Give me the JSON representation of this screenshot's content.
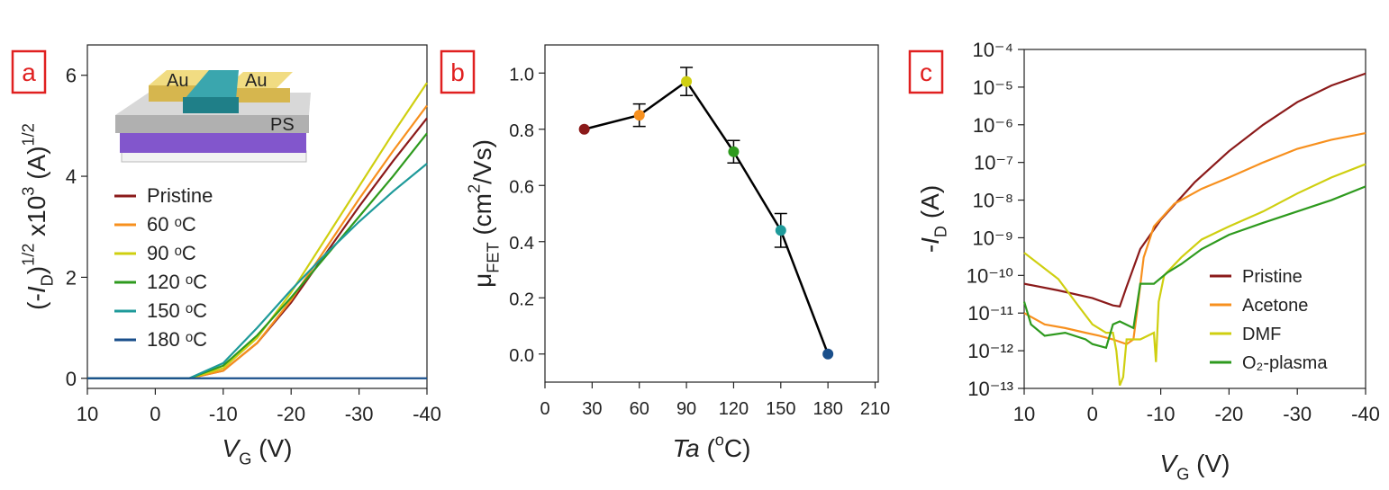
{
  "chart_data": [
    {
      "type": "line",
      "panel_label": "a",
      "x_label": [
        "V",
        "G",
        " (V)"
      ],
      "y_label": [
        "(-",
        "I",
        "D",
        ")",
        "1/2",
        " x10",
        "3",
        " (A)",
        "1/2"
      ],
      "inset_labels": [
        "Au",
        "Au",
        "PS"
      ],
      "x": [
        10,
        0,
        -5,
        -10,
        -15,
        -20,
        -25,
        -30,
        -35,
        -40
      ],
      "xlim": [
        10,
        -40
      ],
      "xticks": [
        10,
        0,
        -10,
        -20,
        -30,
        -40
      ],
      "ylim": [
        -0.2,
        6.6
      ],
      "yticks": [
        0,
        2,
        4,
        6
      ],
      "legend": "upper left",
      "series": [
        {
          "name": "Pristine",
          "color": "#8b1a1a",
          "values": [
            0,
            0,
            0,
            0.15,
            0.7,
            1.5,
            2.45,
            3.4,
            4.3,
            5.15
          ]
        },
        {
          "name": "60 ᵒC",
          "color": "#f7901e",
          "values": [
            0,
            0,
            0,
            0.15,
            0.7,
            1.55,
            2.55,
            3.55,
            4.5,
            5.4
          ]
        },
        {
          "name": "90 ᵒC",
          "color": "#cfcf10",
          "values": [
            0,
            0,
            0,
            0.2,
            0.8,
            1.7,
            2.75,
            3.8,
            4.85,
            5.85
          ]
        },
        {
          "name": "120 ᵒC",
          "color": "#2e9a1e",
          "values": [
            0,
            0,
            0,
            0.25,
            0.85,
            1.6,
            2.4,
            3.2,
            4.0,
            4.85
          ]
        },
        {
          "name": "150 ᵒC",
          "color": "#1e9a9a",
          "values": [
            0,
            0,
            0,
            0.3,
            1.0,
            1.75,
            2.45,
            3.1,
            3.7,
            4.25
          ]
        },
        {
          "name": "180 ᵒC",
          "color": "#1a4f8b",
          "values": [
            0,
            0,
            0,
            0,
            0,
            0,
            0,
            0,
            0,
            0
          ]
        }
      ]
    },
    {
      "type": "line",
      "panel_label": "b",
      "x_label": [
        "T",
        "a",
        " (",
        "o",
        "C)"
      ],
      "y_label": [
        "μ",
        "FET",
        " (cm",
        "2",
        "/Vs)"
      ],
      "x": [
        25,
        60,
        90,
        120,
        150,
        180
      ],
      "xlim": [
        0,
        212
      ],
      "xticks": [
        0,
        30,
        60,
        90,
        120,
        150,
        180,
        210
      ],
      "ylim": [
        -0.1,
        1.1
      ],
      "yticks": [
        {
          "value": 0,
          "label": "0.0"
        },
        0.2,
        0.4,
        0.6,
        0.8,
        {
          "value": 1,
          "label": "1.0"
        }
      ],
      "series": [
        {
          "color": "#000000",
          "values": [
            0.8,
            0.85,
            0.97,
            0.72,
            0.44,
            0.0
          ],
          "errors": [
            0,
            0.04,
            0.05,
            0.04,
            0.06,
            0
          ],
          "point_colors": [
            "#8b1a1a",
            "#f7901e",
            "#cfcf10",
            "#2e9a1e",
            "#1e9a9a",
            "#1a4f8b"
          ]
        }
      ]
    },
    {
      "type": "line",
      "panel_label": "c",
      "log_y": true,
      "x_label": [
        "V",
        "G",
        " (V)"
      ],
      "y_label": [
        "-",
        "I",
        "D",
        " (A)"
      ],
      "xlim": [
        10,
        -40
      ],
      "xticks": [
        10,
        0,
        -10,
        -20,
        -30,
        -40
      ],
      "ylim": [
        1e-13,
        0.0001
      ],
      "yticks": [
        {
          "value": 1e-13,
          "label": "10⁻¹³"
        },
        {
          "value": 1e-12,
          "label": "10⁻¹²"
        },
        {
          "value": 1e-11,
          "label": "10⁻¹¹"
        },
        {
          "value": 1e-10,
          "label": "10⁻¹⁰"
        },
        {
          "value": 1e-09,
          "label": "10⁻⁹"
        },
        {
          "value": 1e-08,
          "label": "10⁻⁸"
        },
        {
          "value": 1e-07,
          "label": "10⁻⁷"
        },
        {
          "value": 1e-06,
          "label": "10⁻⁶"
        },
        {
          "value": 1e-05,
          "label": "10⁻⁵"
        },
        {
          "value": 0.0001,
          "label": "10⁻⁴"
        }
      ],
      "legend": "lower right",
      "series": [
        {
          "name": "Pristine",
          "color": "#8b1a1a",
          "x": [
            10,
            5,
            0,
            -3,
            -4,
            -5,
            -7,
            -10,
            -15,
            -20,
            -25,
            -30,
            -35,
            -40
          ],
          "values": [
            6e-11,
            4e-11,
            2.5e-11,
            1.6e-11,
            1.5e-11,
            5e-11,
            5e-10,
            3e-09,
            3e-08,
            2e-07,
            1e-06,
            4e-06,
            1.1e-05,
            2.3e-05
          ]
        },
        {
          "name": "Acetone",
          "color": "#f7901e",
          "x": [
            10,
            7,
            4,
            1,
            -1,
            -3,
            -5,
            -6,
            -6.5,
            -7.5,
            -9,
            -12,
            -16,
            -20,
            -25,
            -30,
            -35,
            -40
          ],
          "values": [
            1e-11,
            5e-12,
            4e-12,
            3e-12,
            2.5e-12,
            2e-12,
            1.5e-12,
            2e-12,
            1e-11,
            3e-10,
            2e-09,
            8e-09,
            2e-08,
            4e-08,
            1e-07,
            2.3e-07,
            4e-07,
            6e-07
          ]
        },
        {
          "name": "DMF",
          "color": "#cfcf10",
          "x": [
            10,
            5,
            2,
            0,
            -2,
            -3,
            -3.5,
            -4,
            -4.5,
            -5,
            -7,
            -9,
            -9.3,
            -9.7,
            -10.5,
            -13,
            -16,
            -20,
            -25,
            -30,
            -35,
            -40
          ],
          "values": [
            4e-10,
            8e-11,
            1.5e-11,
            5e-12,
            3e-12,
            3e-12,
            1e-12,
            1.2e-13,
            2e-13,
            2e-12,
            2e-12,
            3e-12,
            5e-13,
            2e-11,
            1e-10,
            3e-10,
            9e-10,
            2e-09,
            5e-09,
            1.5e-08,
            4e-08,
            9e-08
          ]
        },
        {
          "name": "O₂-plasma",
          "color": "#2e9a1e",
          "x": [
            10,
            9,
            7,
            4,
            1,
            0,
            -2,
            -3,
            -4,
            -6,
            -7,
            -9,
            -11,
            -13,
            -16,
            -20,
            -25,
            -30,
            -35,
            -40
          ],
          "values": [
            2e-11,
            5e-12,
            2.5e-12,
            3e-12,
            2e-12,
            1.5e-12,
            1.2e-12,
            5e-12,
            6e-12,
            4e-12,
            6e-11,
            6e-11,
            1.2e-10,
            2e-10,
            5e-10,
            1.2e-09,
            2.5e-09,
            5e-09,
            1e-08,
            2.3e-08
          ]
        }
      ]
    }
  ]
}
